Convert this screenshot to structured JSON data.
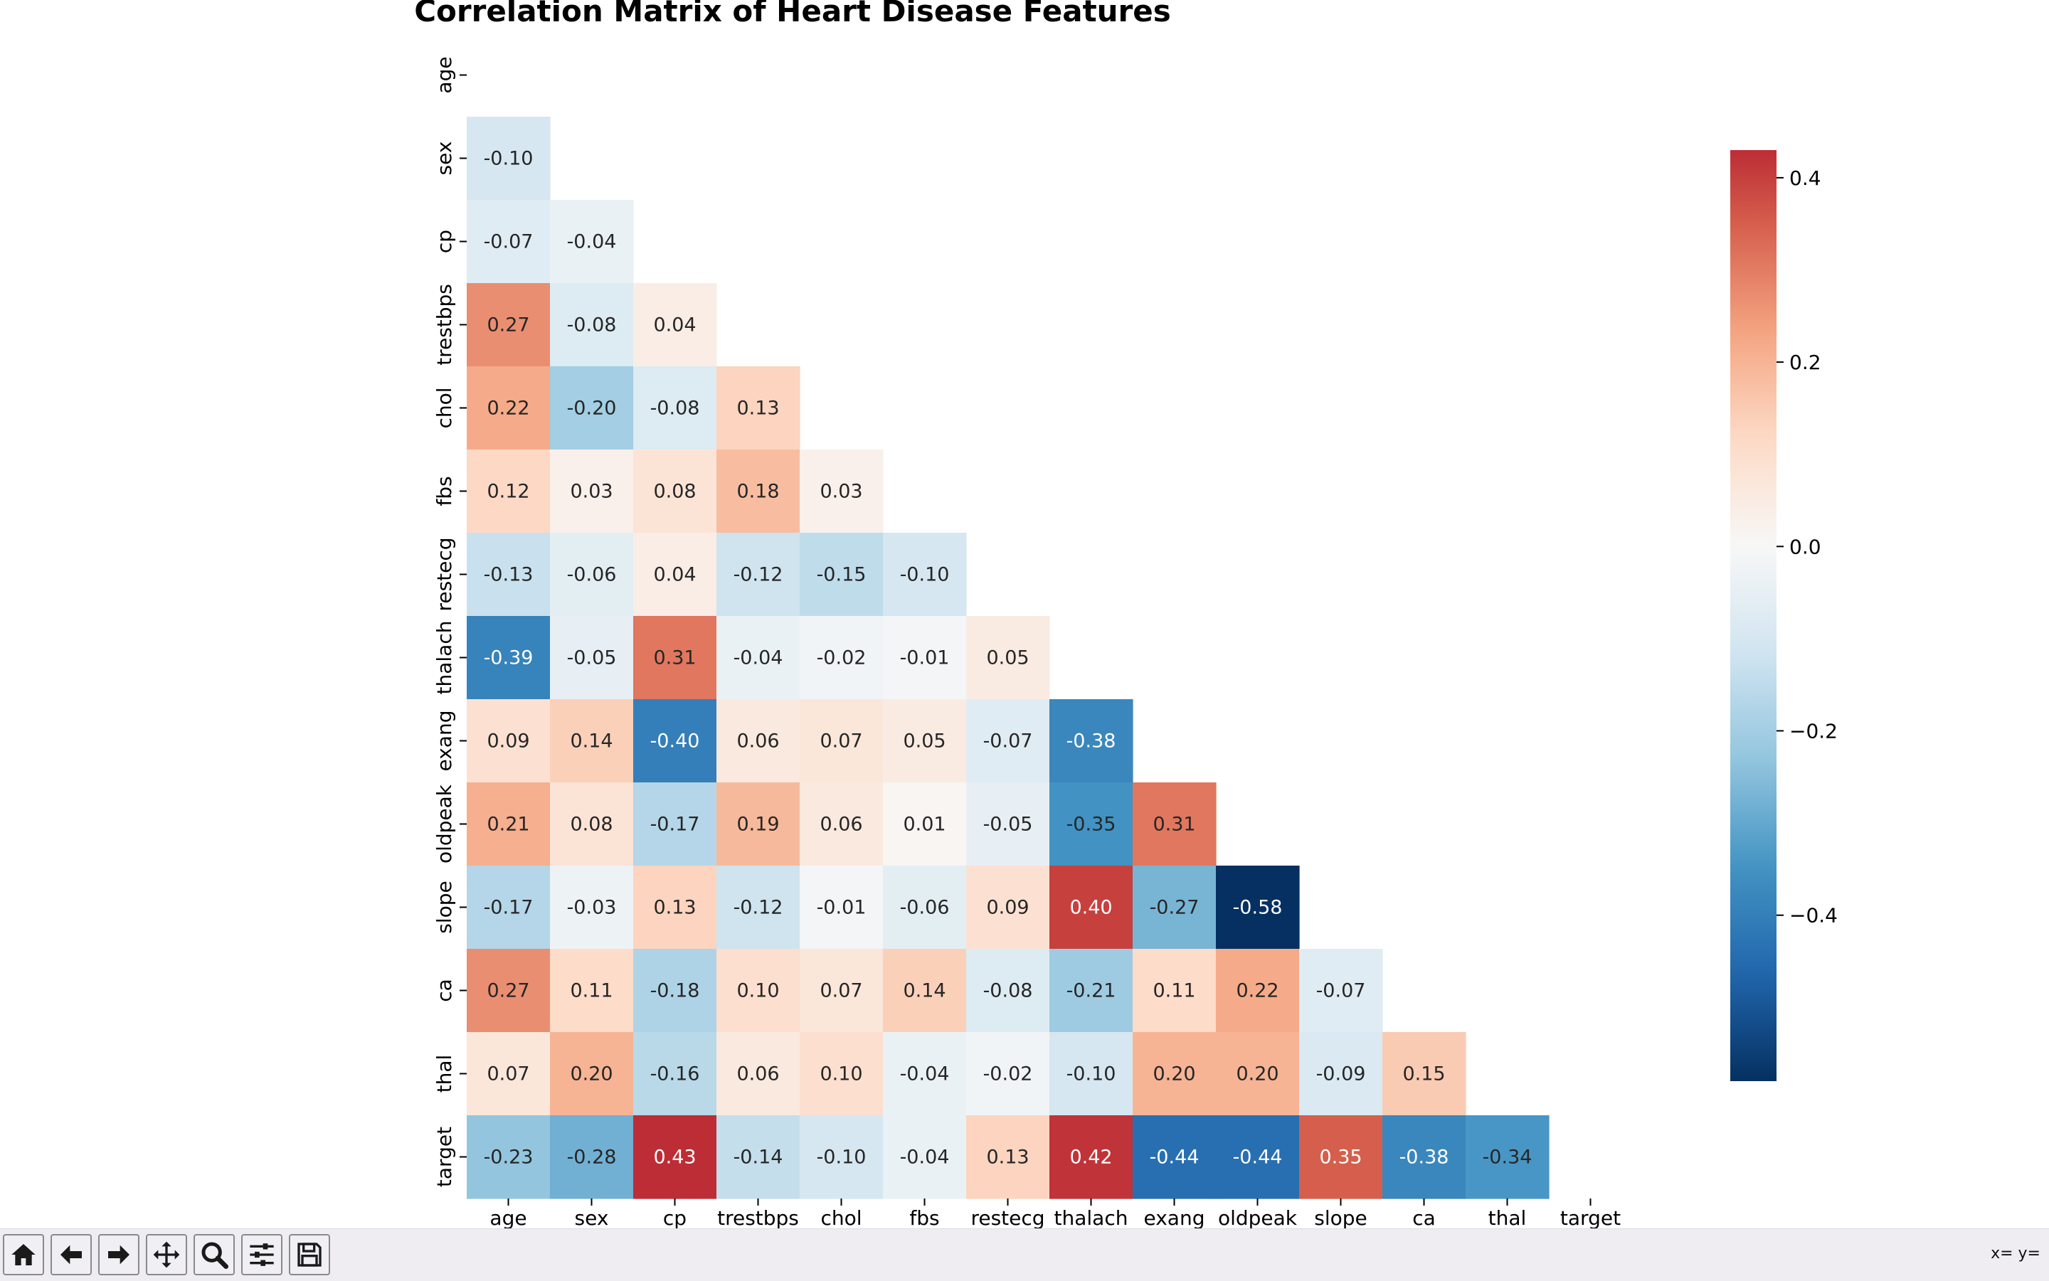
{
  "chart_data": {
    "type": "heatmap",
    "title": "Correlation Matrix of Heart Disease Features",
    "labels": [
      "age",
      "sex",
      "cp",
      "trestbps",
      "chol",
      "fbs",
      "restecg",
      "thalach",
      "exang",
      "oldpeak",
      "slope",
      "ca",
      "thal",
      "target"
    ],
    "mask": "upper-triangle-including-diagonal",
    "values": [
      [],
      [
        -0.1
      ],
      [
        -0.07,
        -0.04
      ],
      [
        0.27,
        -0.08,
        0.04
      ],
      [
        0.22,
        -0.2,
        -0.08,
        0.13
      ],
      [
        0.12,
        0.03,
        0.08,
        0.18,
        0.03
      ],
      [
        -0.13,
        -0.06,
        0.04,
        -0.12,
        -0.15,
        -0.1
      ],
      [
        -0.39,
        -0.05,
        0.31,
        -0.04,
        -0.02,
        -0.01,
        0.05
      ],
      [
        0.09,
        0.14,
        -0.4,
        0.06,
        0.07,
        0.05,
        -0.07,
        -0.38
      ],
      [
        0.21,
        0.08,
        -0.17,
        0.19,
        0.06,
        0.01,
        -0.05,
        -0.35,
        0.31
      ],
      [
        -0.17,
        -0.03,
        0.13,
        -0.12,
        -0.01,
        -0.06,
        0.09,
        0.4,
        -0.27,
        -0.58
      ],
      [
        0.27,
        0.11,
        -0.18,
        0.1,
        0.07,
        0.14,
        -0.08,
        -0.21,
        0.11,
        0.22,
        -0.07
      ],
      [
        0.07,
        0.2,
        -0.16,
        0.06,
        0.1,
        -0.04,
        -0.02,
        -0.1,
        0.2,
        0.2,
        -0.09,
        0.15
      ],
      [
        -0.23,
        -0.28,
        0.43,
        -0.14,
        -0.1,
        -0.04,
        0.13,
        0.42,
        -0.44,
        -0.44,
        0.35,
        -0.38,
        -0.34
      ]
    ],
    "colormap": "RdBu_r",
    "vmin": -0.58,
    "vmax": 0.43,
    "colorbar_ticks": [
      "0.4",
      "0.2",
      "0.0",
      "−0.2",
      "−0.4"
    ],
    "colorbar_tick_values": [
      0.4,
      0.2,
      0.0,
      -0.2,
      -0.4
    ],
    "grid": false,
    "legend": "colorbar-right"
  },
  "toolbar": {
    "buttons": [
      {
        "name": "home-icon"
      },
      {
        "name": "back-arrow-icon"
      },
      {
        "name": "forward-arrow-icon"
      },
      {
        "name": "pan-move-icon"
      },
      {
        "name": "zoom-magnifier-icon"
      },
      {
        "name": "configure-subplots-icon"
      },
      {
        "name": "save-disk-icon"
      }
    ],
    "coords_text": "x= y="
  }
}
